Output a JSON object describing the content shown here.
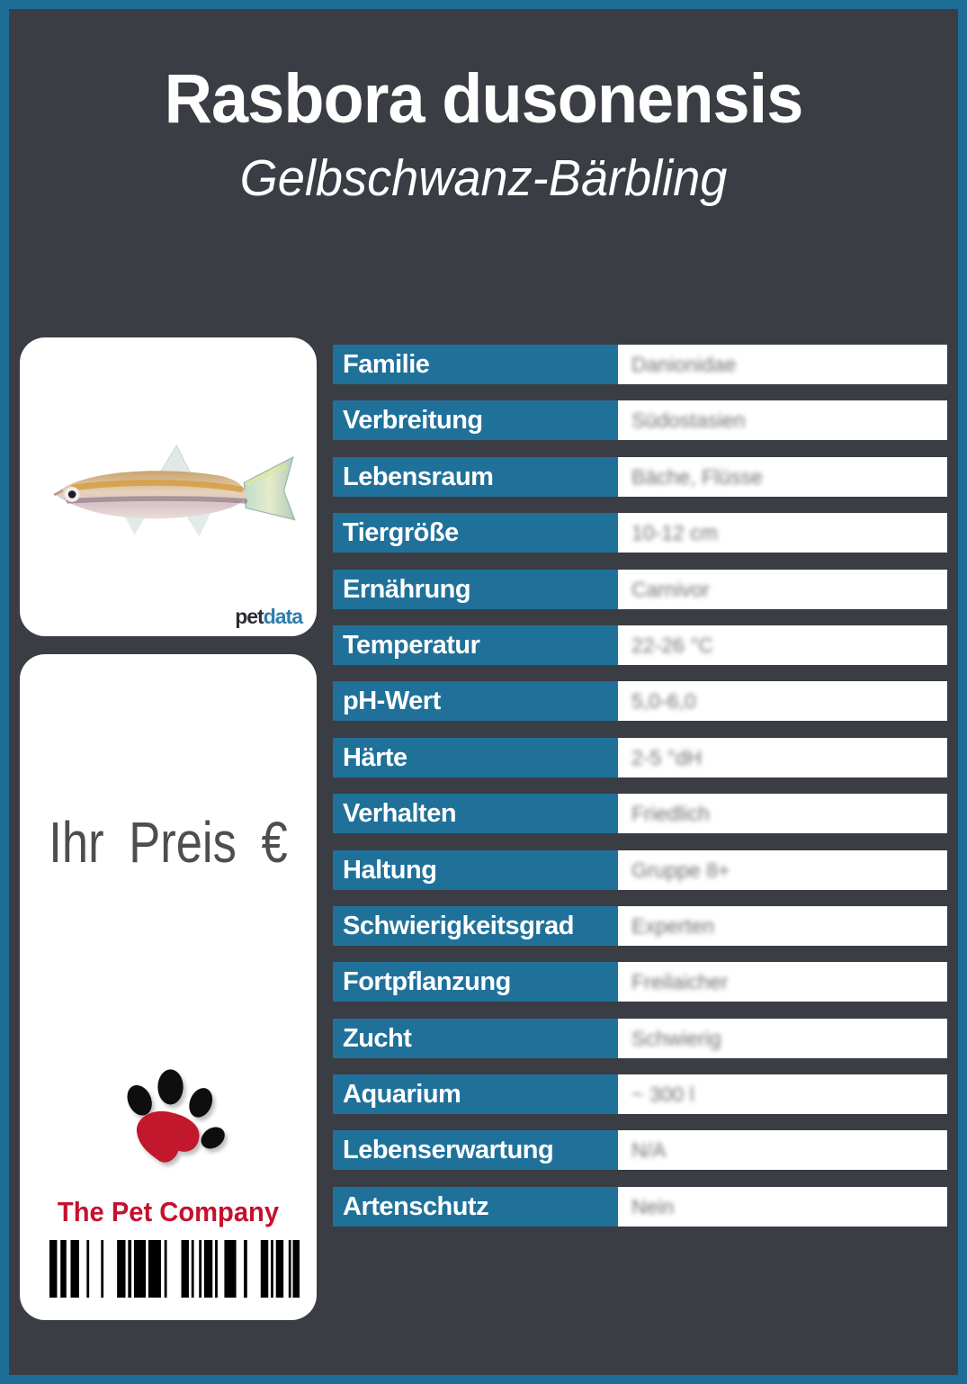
{
  "header": {
    "title": "Rasbora dusonensis",
    "subtitle": "Gelbschwanz-Bärbling"
  },
  "photo_card": {
    "brand_pet": "pet",
    "brand_data": "data"
  },
  "price_card": {
    "price_label": "Ihr Preis €",
    "company_name": "The Pet Company"
  },
  "table": {
    "rows": [
      {
        "label": "Familie",
        "value": "Danionidae"
      },
      {
        "label": "Verbreitung",
        "value": "Südostasien"
      },
      {
        "label": "Lebensraum",
        "value": "Bäche, Flüsse"
      },
      {
        "label": "Tiergröße",
        "value": "10-12 cm"
      },
      {
        "label": "Ernährung",
        "value": "Carnivor"
      },
      {
        "label": "Temperatur",
        "value": "22-26 °C"
      },
      {
        "label": "pH-Wert",
        "value": "5,0-6,0"
      },
      {
        "label": "Härte",
        "value": "2-5 °dH"
      },
      {
        "label": "Verhalten",
        "value": "Friedlich"
      },
      {
        "label": "Haltung",
        "value": "Gruppe 8+"
      },
      {
        "label": "Schwierigkeitsgrad",
        "value": "Experten"
      },
      {
        "label": "Fortpflanzung",
        "value": "Freilaicher"
      },
      {
        "label": "Zucht",
        "value": "Schwierig"
      },
      {
        "label": "Aquarium",
        "value": "~ 300 l"
      },
      {
        "label": "Lebenserwartung",
        "value": "N/A"
      },
      {
        "label": "Artenschutz",
        "value": "Nein"
      }
    ]
  },
  "colors": {
    "border_teal": "#1D6E96",
    "bg_dark": "#3A3D44",
    "accent_blue": "#20719A",
    "brand_red": "#C4122E",
    "petdata_blue": "#2E7EAD"
  },
  "barcode": {
    "bars": [
      [
        9,
        4
      ],
      [
        7,
        5
      ],
      [
        10,
        9
      ],
      [
        3,
        14
      ],
      [
        3,
        16
      ],
      [
        10,
        3
      ],
      [
        4,
        3
      ],
      [
        14,
        3
      ],
      [
        15,
        4
      ],
      [
        3,
        17
      ],
      [
        9,
        3
      ],
      [
        3,
        6
      ],
      [
        3,
        3
      ],
      [
        10,
        3
      ],
      [
        3,
        8
      ],
      [
        14,
        9
      ],
      [
        4,
        16
      ],
      [
        9,
        3
      ],
      [
        3,
        3
      ],
      [
        9,
        6
      ],
      [
        3,
        2
      ],
      [
        8,
        0
      ]
    ]
  }
}
